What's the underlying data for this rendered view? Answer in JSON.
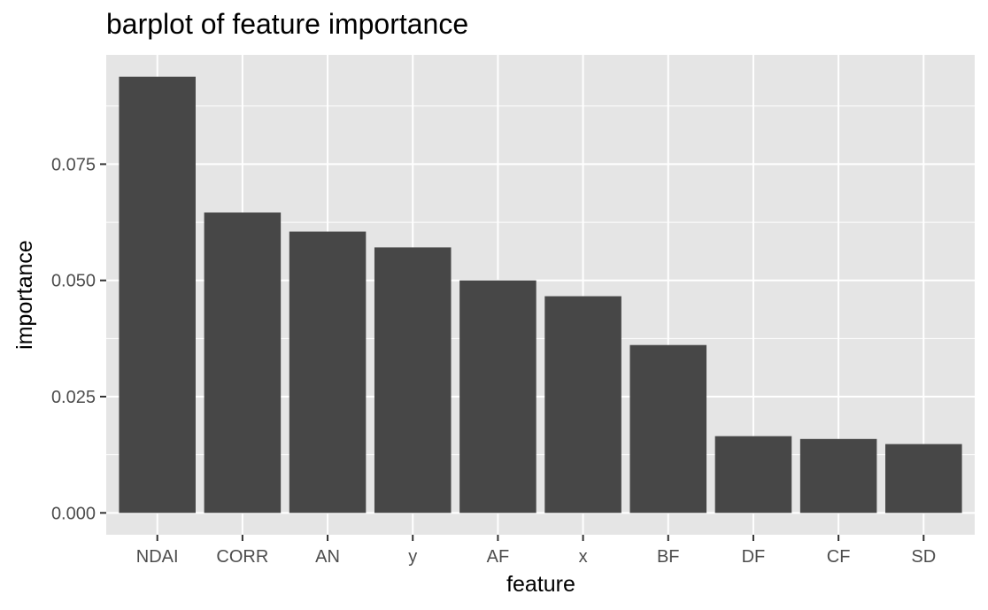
{
  "chart_data": {
    "type": "bar",
    "title": "barplot of feature importance",
    "xlabel": "feature",
    "ylabel": "importance",
    "categories": [
      "NDAI",
      "CORR",
      "AN",
      "y",
      "AF",
      "x",
      "BF",
      "DF",
      "CF",
      "SD"
    ],
    "values": [
      0.0938,
      0.0646,
      0.0605,
      0.0571,
      0.05,
      0.0466,
      0.0361,
      0.0165,
      0.0159,
      0.0148
    ],
    "ylim": [
      -0.0047,
      0.0985
    ],
    "yticks": [
      0.0,
      0.025,
      0.05,
      0.075
    ],
    "ytick_labels": [
      "0.000",
      "0.025",
      "0.050",
      "0.075"
    ],
    "grid": true,
    "legend": "none",
    "colors": {
      "panel_background": "#e5e5e5",
      "gridline": "#ffffff",
      "bar_fill": "#474747",
      "tick_mark": "#333333",
      "tick_text": "#4d4d4d",
      "text": "#000000"
    }
  }
}
